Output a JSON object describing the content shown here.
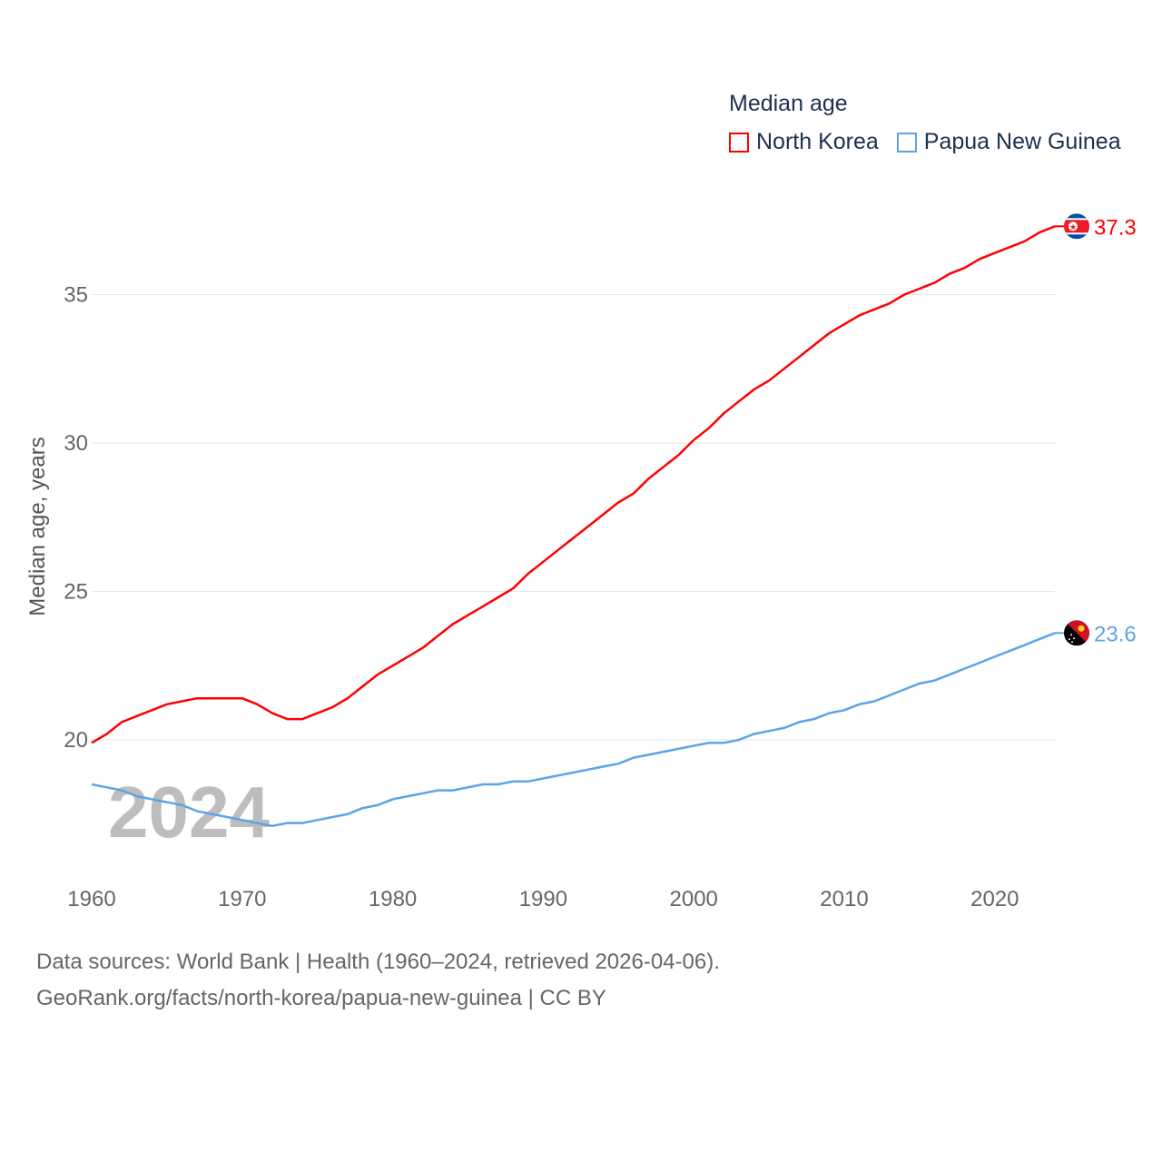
{
  "chart_data": {
    "type": "line",
    "title": "Median age",
    "ylabel": "Median age, years",
    "xlabel": "",
    "xlim": [
      1960,
      2024
    ],
    "ylim": [
      16,
      38
    ],
    "yticks": [
      20,
      25,
      30,
      35
    ],
    "xticks": [
      1960,
      1970,
      1980,
      1990,
      2000,
      2010,
      2020
    ],
    "grid": true,
    "legend_placement": "top-right",
    "watermark_year": "2024",
    "x": [
      1960,
      1961,
      1962,
      1963,
      1964,
      1965,
      1966,
      1967,
      1968,
      1969,
      1970,
      1971,
      1972,
      1973,
      1974,
      1975,
      1976,
      1977,
      1978,
      1979,
      1980,
      1981,
      1982,
      1983,
      1984,
      1985,
      1986,
      1987,
      1988,
      1989,
      1990,
      1991,
      1992,
      1993,
      1994,
      1995,
      1996,
      1997,
      1998,
      1999,
      2000,
      2001,
      2002,
      2003,
      2004,
      2005,
      2006,
      2007,
      2008,
      2009,
      2010,
      2011,
      2012,
      2013,
      2014,
      2015,
      2016,
      2017,
      2018,
      2019,
      2020,
      2021,
      2022,
      2023,
      2024
    ],
    "series": [
      {
        "name": "North Korea",
        "color": "#ff0000",
        "end_label": "37.3",
        "values": [
          19.9,
          20.2,
          20.6,
          20.8,
          21.0,
          21.2,
          21.3,
          21.4,
          21.4,
          21.4,
          21.4,
          21.2,
          20.9,
          20.7,
          20.7,
          20.9,
          21.1,
          21.4,
          21.8,
          22.2,
          22.5,
          22.8,
          23.1,
          23.5,
          23.9,
          24.2,
          24.5,
          24.8,
          25.1,
          25.6,
          26.0,
          26.4,
          26.8,
          27.2,
          27.6,
          28.0,
          28.3,
          28.8,
          29.2,
          29.6,
          30.1,
          30.5,
          31.0,
          31.4,
          31.8,
          32.1,
          32.5,
          32.9,
          33.3,
          33.7,
          34.0,
          34.3,
          34.5,
          34.7,
          35.0,
          35.2,
          35.4,
          35.7,
          35.9,
          36.2,
          36.4,
          36.6,
          36.8,
          37.1,
          37.3
        ]
      },
      {
        "name": "Papua New Guinea",
        "color": "#5ba4e8",
        "end_label": "23.6",
        "values": [
          18.5,
          18.4,
          18.3,
          18.1,
          18.0,
          17.9,
          17.8,
          17.6,
          17.5,
          17.4,
          17.3,
          17.2,
          17.1,
          17.2,
          17.2,
          17.3,
          17.4,
          17.5,
          17.7,
          17.8,
          18.0,
          18.1,
          18.2,
          18.3,
          18.3,
          18.4,
          18.5,
          18.5,
          18.6,
          18.6,
          18.7,
          18.8,
          18.9,
          19.0,
          19.1,
          19.2,
          19.4,
          19.5,
          19.6,
          19.7,
          19.8,
          19.9,
          19.9,
          20.0,
          20.2,
          20.3,
          20.4,
          20.6,
          20.7,
          20.9,
          21.0,
          21.2,
          21.3,
          21.5,
          21.7,
          21.9,
          22.0,
          22.2,
          22.4,
          22.6,
          22.8,
          23.0,
          23.2,
          23.4,
          23.6
        ]
      }
    ]
  },
  "footer": {
    "source_line": "Data sources: World Bank | Health (1960–2024, retrieved 2026-04-06).",
    "url_line": "GeoRank.org/facts/north-korea/papua-new-guinea | CC BY"
  }
}
